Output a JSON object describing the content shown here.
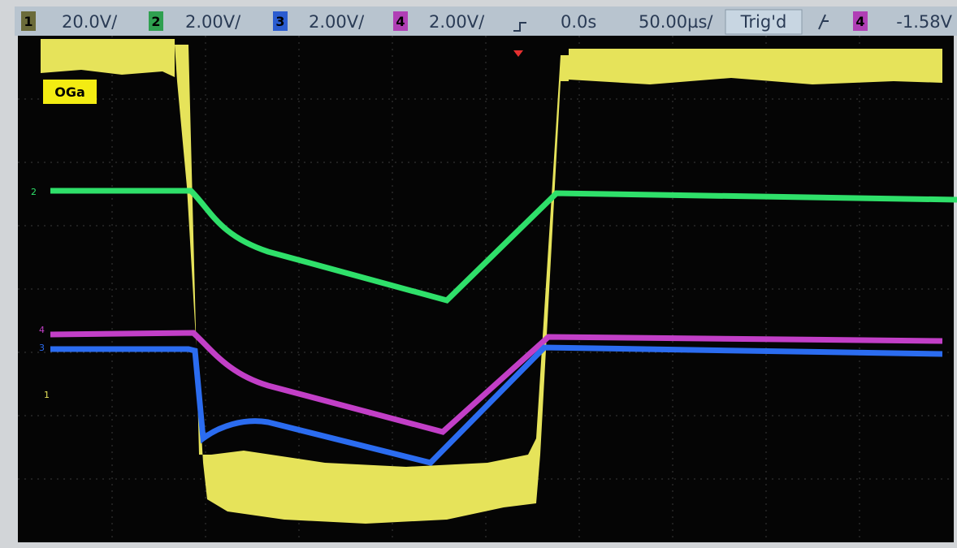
{
  "header": {
    "channels": [
      {
        "number": "1",
        "scale": "20.0V/"
      },
      {
        "number": "2",
        "scale": "2.00V/"
      },
      {
        "number": "3",
        "scale": "2.00V/"
      },
      {
        "number": "4",
        "scale": "2.00V/"
      }
    ],
    "delay": "0.0s",
    "timebase": "50.00µs/",
    "status": "Trig'd",
    "trigger_channel": "4",
    "trigger_level": "-1.58V"
  },
  "screen": {
    "label": "OGa",
    "markers": [
      "2",
      "4",
      "3",
      "1"
    ]
  }
}
